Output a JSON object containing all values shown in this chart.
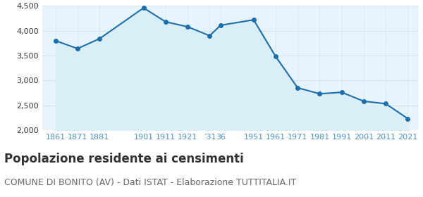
{
  "years": [
    1861,
    1871,
    1881,
    1901,
    1911,
    1921,
    1931,
    1936,
    1951,
    1961,
    1971,
    1981,
    1991,
    2001,
    2011,
    2021
  ],
  "population": [
    3800,
    3640,
    3840,
    4460,
    4180,
    4080,
    3900,
    4110,
    4220,
    3480,
    2850,
    2730,
    2760,
    2580,
    2530,
    2230
  ],
  "line_color": "#1a6faf",
  "fill_color": "#daeef8",
  "marker_color": "#1a6faf",
  "background_color": "#ffffff",
  "plot_bg_color": "#e8f4fb",
  "grid_color": "#c8dde8",
  "title": "Popolazione residente ai censimenti",
  "subtitle": "COMUNE DI BONITO (AV) - Dati ISTAT - Elaborazione TUTTITALIA.IT",
  "ylim": [
    2000,
    4500
  ],
  "yticks": [
    2000,
    2500,
    3000,
    3500,
    4000,
    4500
  ],
  "title_fontsize": 12,
  "subtitle_fontsize": 9,
  "tick_color": "#4a90c4",
  "tick_label_fontsize": 8
}
